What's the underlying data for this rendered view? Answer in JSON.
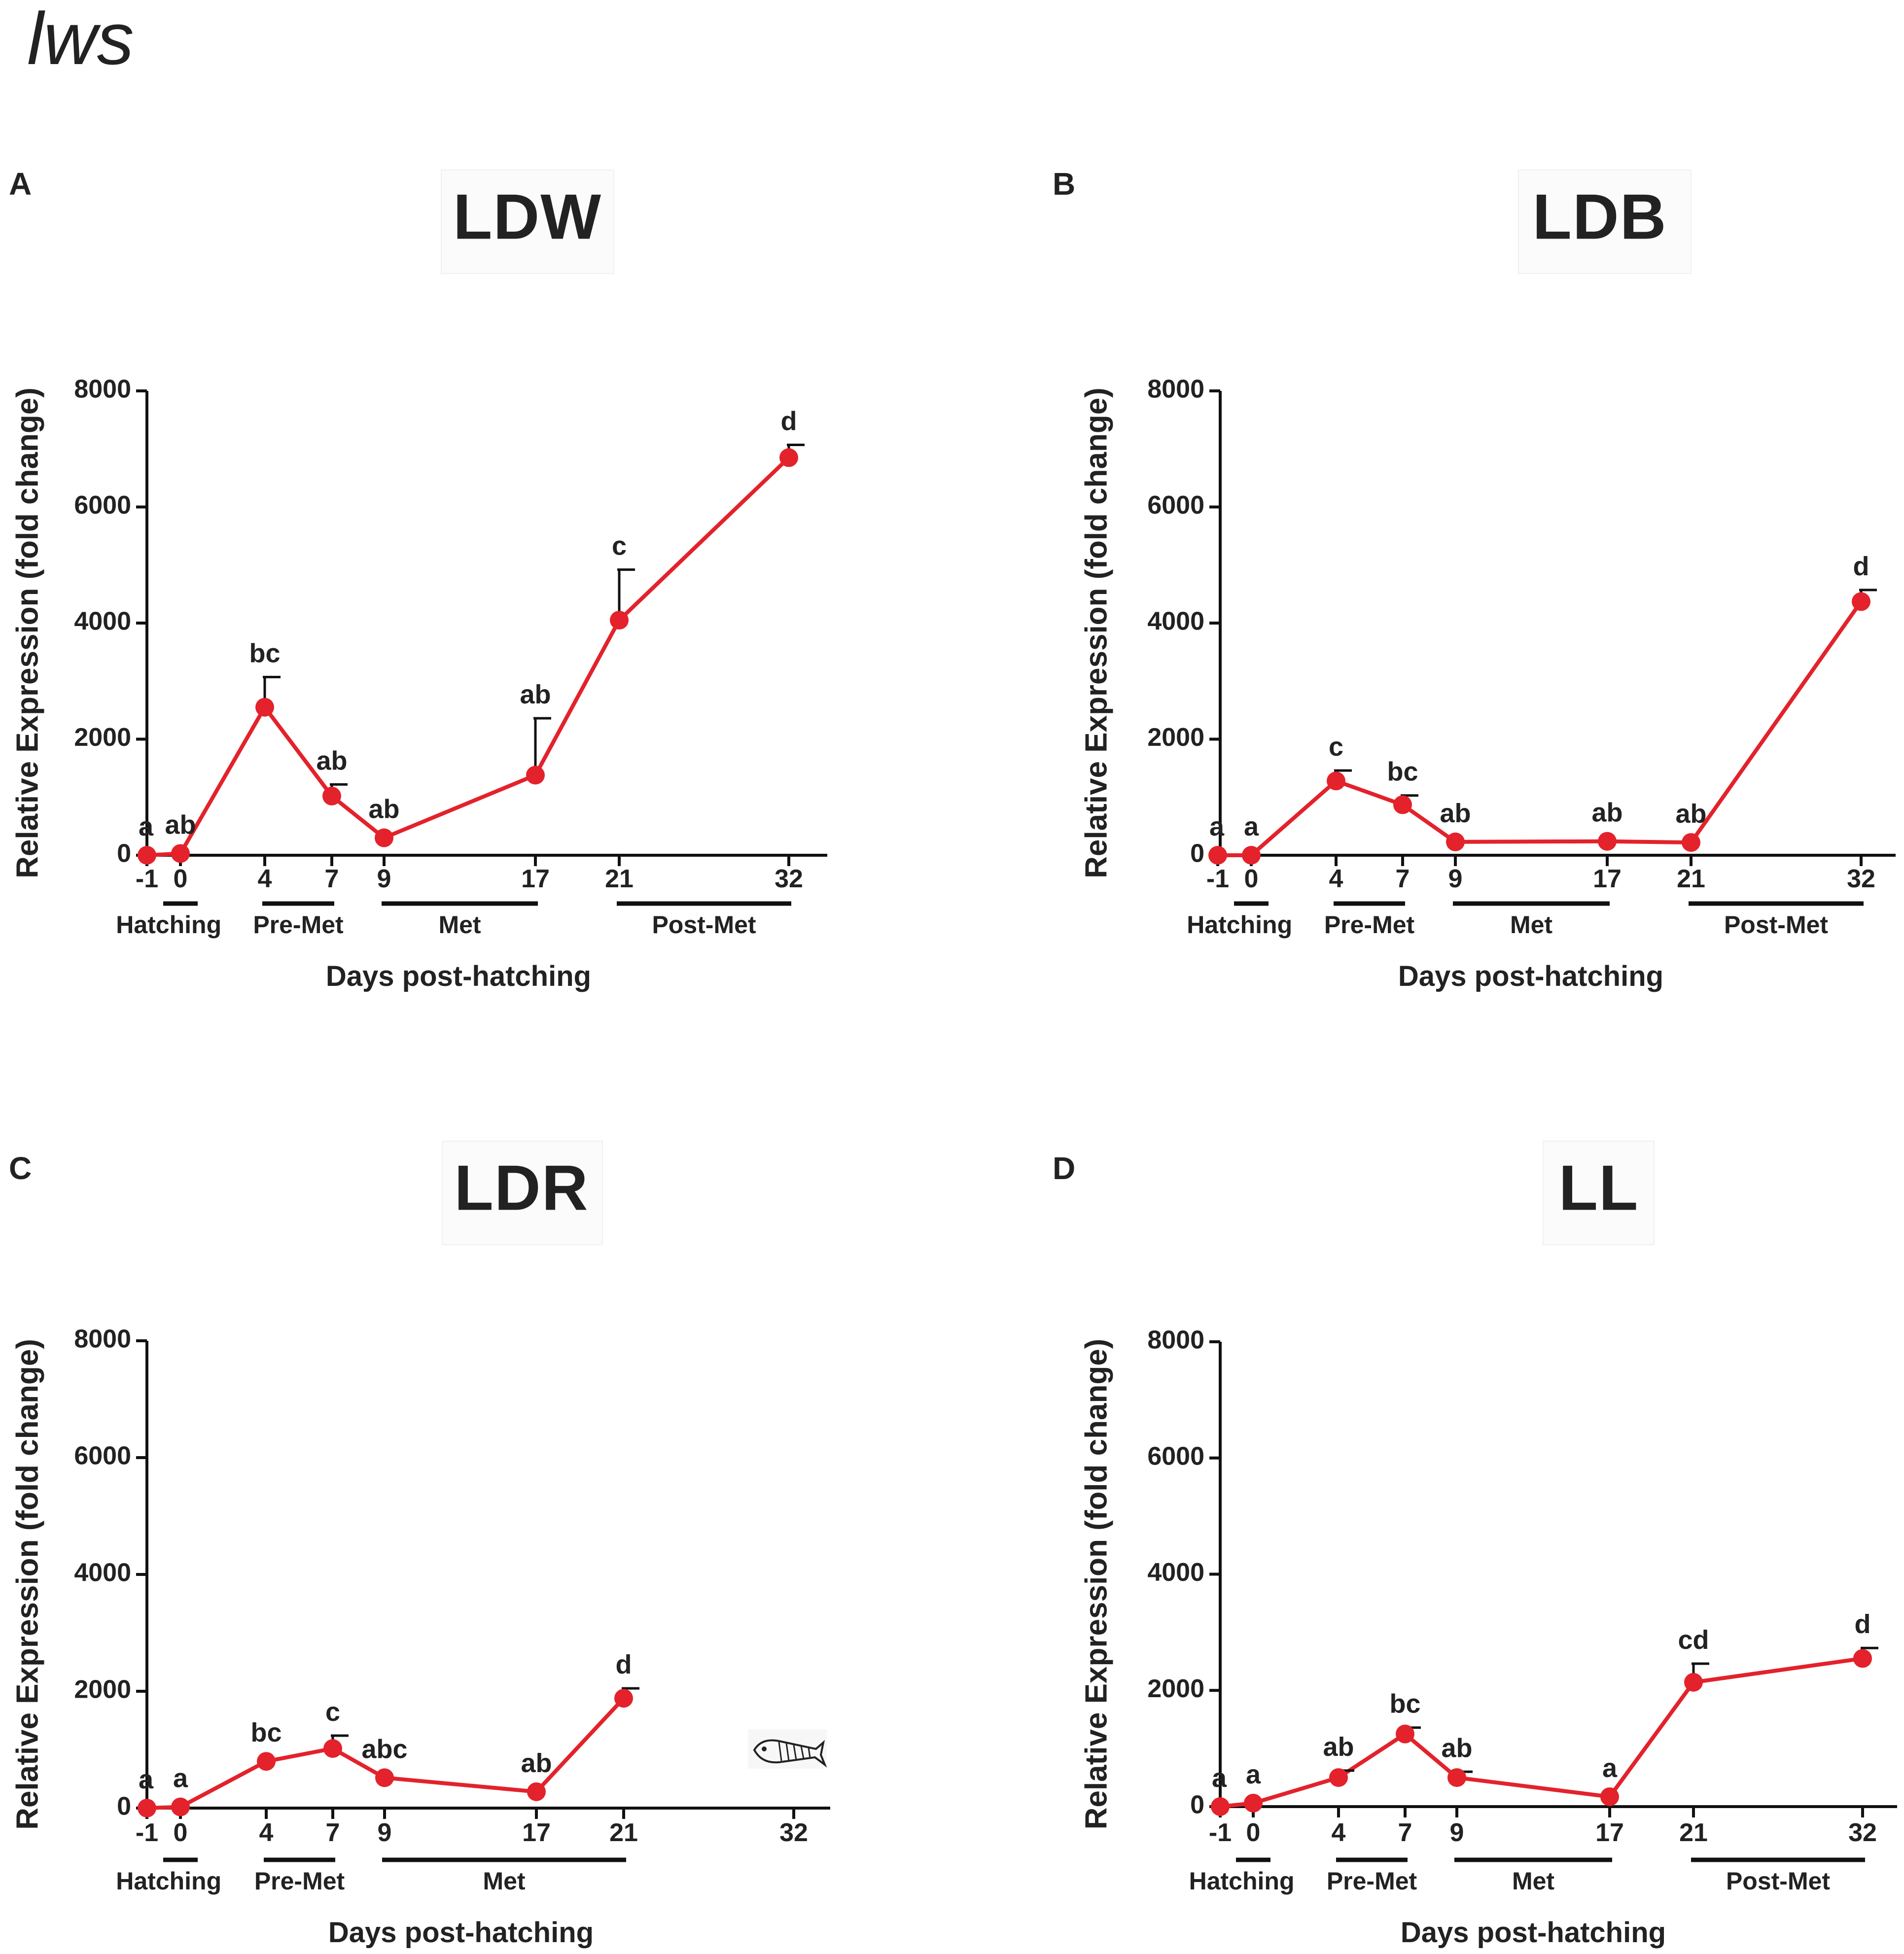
{
  "figure_title": "lws",
  "colors": {
    "series": "#e3222b",
    "axis": "#111111",
    "text": "#222222"
  },
  "chart_data": [
    {
      "panel": "A",
      "title": "LDW",
      "type": "line",
      "ylabel": "Relative Expression (fold change)",
      "xlabel": "Days post-hatching",
      "ylim": [
        0,
        8000
      ],
      "yticks": [
        0,
        2000,
        4000,
        6000,
        8000
      ],
      "xticks": [
        "-1",
        "0",
        "4",
        "7",
        "9",
        "17",
        "21",
        "32"
      ],
      "phases": [
        {
          "label": "Hatching",
          "from": "0",
          "to": "0"
        },
        {
          "label": "Pre-Met",
          "from": "4",
          "to": "7"
        },
        {
          "label": "Met",
          "from": "9",
          "to": "17"
        },
        {
          "label": "Post-Met",
          "from": "21",
          "to": "32"
        }
      ],
      "series": [
        {
          "name": "lws",
          "points": [
            {
              "x": "-1",
              "y": 0,
              "err": 0,
              "sig": "a"
            },
            {
              "x": "0",
              "y": 30,
              "err": 0,
              "sig": "ab"
            },
            {
              "x": "4",
              "y": 2550,
              "err": 520,
              "sig": "bc"
            },
            {
              "x": "7",
              "y": 1020,
              "err": 200,
              "sig": "ab"
            },
            {
              "x": "9",
              "y": 300,
              "err": 0,
              "sig": "ab"
            },
            {
              "x": "17",
              "y": 1380,
              "err": 980,
              "sig": "ab"
            },
            {
              "x": "21",
              "y": 4050,
              "err": 870,
              "sig": "c"
            },
            {
              "x": "32",
              "y": 6850,
              "err": 220,
              "sig": "d"
            }
          ]
        }
      ]
    },
    {
      "panel": "B",
      "title": "LDB",
      "type": "line",
      "ylabel": "Relative Expression (fold change)",
      "xlabel": "Days post-hatching",
      "ylim": [
        0,
        8000
      ],
      "yticks": [
        0,
        2000,
        4000,
        6000,
        8000
      ],
      "xticks": [
        "-1",
        "0",
        "4",
        "7",
        "9",
        "17",
        "21",
        "32"
      ],
      "phases": [
        {
          "label": "Hatching",
          "from": "0",
          "to": "0"
        },
        {
          "label": "Pre-Met",
          "from": "4",
          "to": "7"
        },
        {
          "label": "Met",
          "from": "9",
          "to": "17"
        },
        {
          "label": "Post-Met",
          "from": "21",
          "to": "32"
        }
      ],
      "series": [
        {
          "name": "lws",
          "points": [
            {
              "x": "-1",
              "y": 0,
              "err": 0,
              "sig": "a"
            },
            {
              "x": "0",
              "y": 0,
              "err": 0,
              "sig": "a"
            },
            {
              "x": "4",
              "y": 1280,
              "err": 180,
              "sig": "c"
            },
            {
              "x": "7",
              "y": 870,
              "err": 160,
              "sig": "bc"
            },
            {
              "x": "9",
              "y": 230,
              "err": 0,
              "sig": "ab"
            },
            {
              "x": "17",
              "y": 240,
              "err": 0,
              "sig": "ab"
            },
            {
              "x": "21",
              "y": 220,
              "err": 0,
              "sig": "ab"
            },
            {
              "x": "32",
              "y": 4370,
              "err": 200,
              "sig": "d"
            }
          ]
        }
      ]
    },
    {
      "panel": "C",
      "title": "LDR",
      "type": "line",
      "ylabel": "Relative Expression (fold change)",
      "xlabel": "Days post-hatching",
      "ylim": [
        0,
        8000
      ],
      "yticks": [
        0,
        2000,
        4000,
        6000,
        8000
      ],
      "xticks": [
        "-1",
        "0",
        "4",
        "7",
        "9",
        "17",
        "21",
        "32"
      ],
      "phases": [
        {
          "label": "Hatching",
          "from": "0",
          "to": "0"
        },
        {
          "label": "Pre-Met",
          "from": "4",
          "to": "7"
        },
        {
          "label": "Met",
          "from": "9",
          "to": "21"
        }
      ],
      "series": [
        {
          "name": "lws",
          "points": [
            {
              "x": "-1",
              "y": 0,
              "err": 0,
              "sig": "a"
            },
            {
              "x": "0",
              "y": 20,
              "err": 0,
              "sig": "a"
            },
            {
              "x": "4",
              "y": 800,
              "err": 0,
              "sig": "bc"
            },
            {
              "x": "7",
              "y": 1020,
              "err": 220,
              "sig": "c"
            },
            {
              "x": "9",
              "y": 520,
              "err": 0,
              "sig": "abc"
            },
            {
              "x": "17",
              "y": 280,
              "err": 0,
              "sig": "ab"
            },
            {
              "x": "21",
              "y": 1880,
              "err": 170,
              "sig": "d"
            }
          ]
        }
      ]
    },
    {
      "panel": "D",
      "title": "LL",
      "type": "line",
      "ylabel": "Relative Expression (fold change)",
      "xlabel": "Days post-hatching",
      "ylim": [
        0,
        8000
      ],
      "yticks": [
        0,
        2000,
        4000,
        6000,
        8000
      ],
      "xticks": [
        "-1",
        "0",
        "4",
        "7",
        "9",
        "17",
        "21",
        "32"
      ],
      "phases": [
        {
          "label": "Hatching",
          "from": "0",
          "to": "0"
        },
        {
          "label": "Pre-Met",
          "from": "4",
          "to": "7"
        },
        {
          "label": "Met",
          "from": "9",
          "to": "17"
        },
        {
          "label": "Post-Met",
          "from": "21",
          "to": "32"
        }
      ],
      "series": [
        {
          "name": "lws",
          "points": [
            {
              "x": "-1",
              "y": 0,
              "err": 0,
              "sig": "a"
            },
            {
              "x": "0",
              "y": 60,
              "err": 0,
              "sig": "a"
            },
            {
              "x": "4",
              "y": 500,
              "err": 120,
              "sig": "ab"
            },
            {
              "x": "7",
              "y": 1250,
              "err": 110,
              "sig": "bc"
            },
            {
              "x": "9",
              "y": 500,
              "err": 100,
              "sig": "ab"
            },
            {
              "x": "17",
              "y": 170,
              "err": 0,
              "sig": "a"
            },
            {
              "x": "21",
              "y": 2140,
              "err": 320,
              "sig": "cd"
            },
            {
              "x": "32",
              "y": 2550,
              "err": 180,
              "sig": "d"
            }
          ]
        }
      ]
    }
  ]
}
